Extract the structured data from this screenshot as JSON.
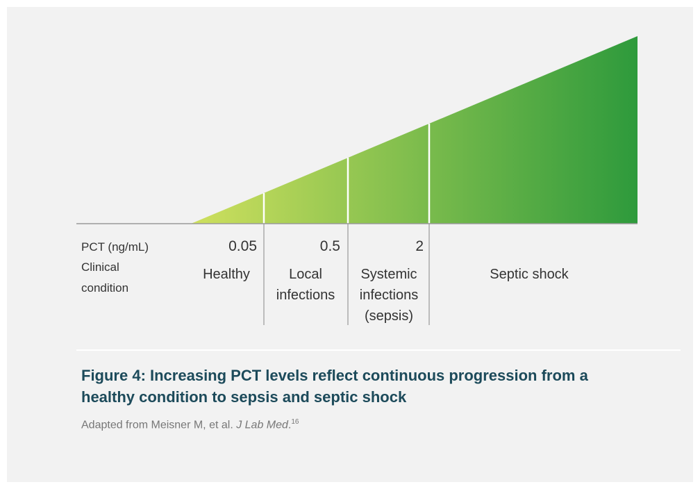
{
  "diagram": {
    "row_labels": [
      "PCT (ng/mL)",
      [
        "Clinical",
        "condition"
      ]
    ],
    "thresholds": [
      "0.05",
      "0.5",
      "2"
    ],
    "conditions": [
      [
        "Healthy"
      ],
      [
        "Local",
        "infections"
      ],
      [
        "Systemic",
        "infections",
        "(sepsis)"
      ],
      [
        "Septic shock"
      ]
    ]
  },
  "caption": {
    "title": [
      "Figure 4: Increasing PCT levels reflect continuous progression from a",
      "healthy condition to sepsis and septic shock"
    ],
    "source": {
      "text": "Adapted from Meisner M, et al. ",
      "journal": "J Lab Med",
      "end": ".",
      "ref": "16"
    }
  }
}
